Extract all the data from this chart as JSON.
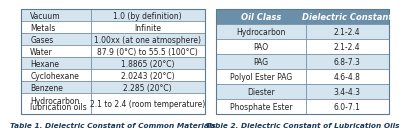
{
  "table1_title": "Table 1. Dielectric Constant of Common Materials",
  "table2_title": "Table 2. Dielectric Constant of Lubrication Oils",
  "table1_rows": [
    [
      "Vacuum",
      "1.0 (by definition)"
    ],
    [
      "Metals",
      "Infinite"
    ],
    [
      "Gases",
      "1.00xx (at one atmosphere)"
    ],
    [
      "Water",
      "87.9 (0°C) to 55.5 (100°C)"
    ],
    [
      "Hexane",
      "1.8865 (20°C)"
    ],
    [
      "Cyclohexane",
      "2.0243 (20°C)"
    ],
    [
      "Benzene",
      "2.285 (20°C)"
    ],
    [
      "Hydrocarbon\nlubrication oils",
      "2.1 to 2.4 (room temperature)"
    ]
  ],
  "table2_headers": [
    "Oil Class",
    "Dielectric Constant"
  ],
  "table2_rows": [
    [
      "Hydrocarbon",
      "2.1-2.4"
    ],
    [
      "PAO",
      "2.1-2.4"
    ],
    [
      "PAG",
      "6.8-7.3"
    ],
    [
      "Polyol Ester PAG",
      "4.6-4.8"
    ],
    [
      "Diester",
      "3.4-4.3"
    ],
    [
      "Phosphate Ester",
      "6.0-7.1"
    ]
  ],
  "header_bg": "#6B8FA8",
  "header_text": "#FFFFFF",
  "row_bg_light": "#D5E5F0",
  "row_bg_white": "#FFFFFF",
  "border_color": "#5A7A90",
  "title_color": "#1A3A5C",
  "text_color": "#222222",
  "cell_text_size": 5.5,
  "header_text_size": 6.0,
  "title_text_size": 5.3,
  "t1_col_split": 0.38,
  "t2_col_split": 0.52
}
